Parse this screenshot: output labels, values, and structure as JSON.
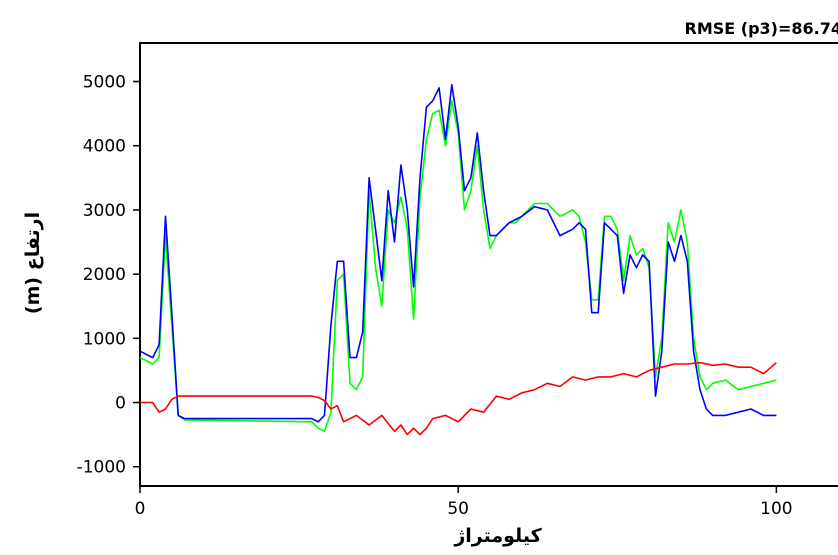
{
  "chart_data": {
    "type": "line",
    "title": "RMSE (p3)=86.74",
    "xlabel": "کیلومتراژ",
    "ylabel": "ارتفاع (m)",
    "xlim": [
      0,
      110
    ],
    "ylim": [
      -1300,
      5600
    ],
    "xticks": [
      0,
      50,
      100
    ],
    "yticks": [
      -1000,
      0,
      1000,
      2000,
      3000,
      4000,
      5000
    ],
    "grid": false,
    "series": [
      {
        "color": "#00ff00",
        "x": [
          0,
          2,
          3,
          4,
          5,
          6,
          7,
          27,
          28,
          29,
          30,
          31,
          32,
          33,
          34,
          35,
          36,
          37,
          38,
          39,
          40,
          41,
          42,
          43,
          44,
          45,
          46,
          47,
          48,
          49,
          50,
          51,
          52,
          53,
          54,
          55,
          56,
          57,
          58,
          59,
          60,
          62,
          64,
          66,
          68,
          69,
          70,
          71,
          72,
          73,
          74,
          75,
          76,
          77,
          78,
          79,
          80,
          81,
          82,
          83,
          84,
          85,
          86,
          87,
          88,
          89,
          90,
          92,
          94,
          96,
          98,
          100
        ],
        "y": [
          700,
          600,
          700,
          2600,
          1200,
          -200,
          -270,
          -300,
          -400,
          -450,
          -150,
          1900,
          2000,
          300,
          200,
          400,
          3300,
          2100,
          1500,
          3000,
          2800,
          3200,
          2700,
          1300,
          3200,
          4100,
          4500,
          4550,
          4000,
          4700,
          4200,
          3000,
          3300,
          4000,
          3000,
          2400,
          2600,
          2700,
          2800,
          2800,
          2900,
          3100,
          3100,
          2900,
          3000,
          2900,
          2500,
          1600,
          1600,
          2900,
          2900,
          2700,
          1900,
          2600,
          2300,
          2400,
          2100,
          400,
          1000,
          2800,
          2500,
          3000,
          2500,
          1000,
          400,
          200,
          300,
          350,
          200,
          250,
          300,
          350
        ]
      },
      {
        "color": "#0000ff",
        "x": [
          0,
          2,
          3,
          4,
          5,
          6,
          7,
          27,
          28,
          29,
          30,
          31,
          32,
          33,
          34,
          35,
          36,
          37,
          38,
          39,
          40,
          41,
          42,
          43,
          44,
          45,
          46,
          47,
          48,
          49,
          50,
          51,
          52,
          53,
          54,
          55,
          56,
          57,
          58,
          59,
          60,
          62,
          64,
          66,
          68,
          69,
          70,
          71,
          72,
          73,
          74,
          75,
          76,
          77,
          78,
          79,
          80,
          81,
          82,
          83,
          84,
          85,
          86,
          87,
          88,
          89,
          90,
          92,
          94,
          96,
          98,
          100
        ],
        "y": [
          800,
          700,
          900,
          2900,
          1400,
          -200,
          -250,
          -250,
          -300,
          -200,
          1200,
          2200,
          2200,
          700,
          700,
          1100,
          3500,
          2700,
          1900,
          3300,
          2500,
          3700,
          3000,
          1800,
          3500,
          4600,
          4700,
          4900,
          4100,
          4950,
          4300,
          3300,
          3500,
          4200,
          3300,
          2600,
          2600,
          2700,
          2800,
          2850,
          2900,
          3050,
          3000,
          2600,
          2700,
          2800,
          2700,
          1400,
          1400,
          2800,
          2700,
          2600,
          1700,
          2300,
          2100,
          2300,
          2200,
          100,
          800,
          2500,
          2200,
          2600,
          2200,
          800,
          200,
          -100,
          -200,
          -200,
          -150,
          -100,
          -200,
          -200
        ]
      },
      {
        "color": "#ff0000",
        "x": [
          0,
          2,
          3,
          4,
          5,
          6,
          7,
          27,
          28,
          29,
          30,
          31,
          32,
          34,
          36,
          38,
          40,
          41,
          42,
          43,
          44,
          45,
          46,
          48,
          50,
          52,
          54,
          56,
          58,
          60,
          62,
          64,
          66,
          68,
          70,
          72,
          74,
          76,
          78,
          80,
          82,
          84,
          86,
          88,
          90,
          92,
          94,
          96,
          98,
          100
        ],
        "y": [
          0,
          0,
          -150,
          -100,
          50,
          100,
          100,
          100,
          80,
          30,
          -100,
          -50,
          -300,
          -200,
          -350,
          -200,
          -450,
          -350,
          -500,
          -400,
          -500,
          -400,
          -250,
          -200,
          -300,
          -100,
          -150,
          100,
          50,
          150,
          200,
          300,
          250,
          400,
          350,
          400,
          400,
          450,
          400,
          500,
          550,
          600,
          600,
          620,
          580,
          600,
          550,
          550,
          450,
          620
        ]
      }
    ]
  }
}
